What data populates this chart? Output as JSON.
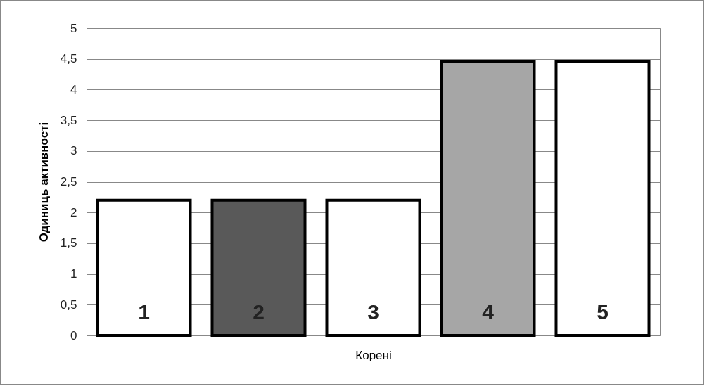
{
  "chart_data": {
    "type": "bar",
    "xlabel": "Корені",
    "ylabel": "Одиниць активності",
    "categories": [
      "1",
      "2",
      "3",
      "4",
      "5"
    ],
    "values": [
      2.2,
      2.2,
      2.2,
      4.45,
      4.45
    ],
    "colors": [
      "#ffffff",
      "#595959",
      "#ffffff",
      "#a6a6a6",
      "#ffffff"
    ],
    "ylim": [
      0,
      5
    ],
    "yticks": [
      0,
      {
        "value": 0.5,
        "label": "0,5"
      },
      1,
      {
        "value": 1.5,
        "label": "1,5"
      },
      2,
      {
        "value": 2.5,
        "label": "2,5"
      },
      3,
      {
        "value": 3.5,
        "label": "3,5"
      },
      4,
      {
        "value": 4.5,
        "label": "4,5"
      },
      5
    ],
    "grid": "y",
    "legend": false
  }
}
